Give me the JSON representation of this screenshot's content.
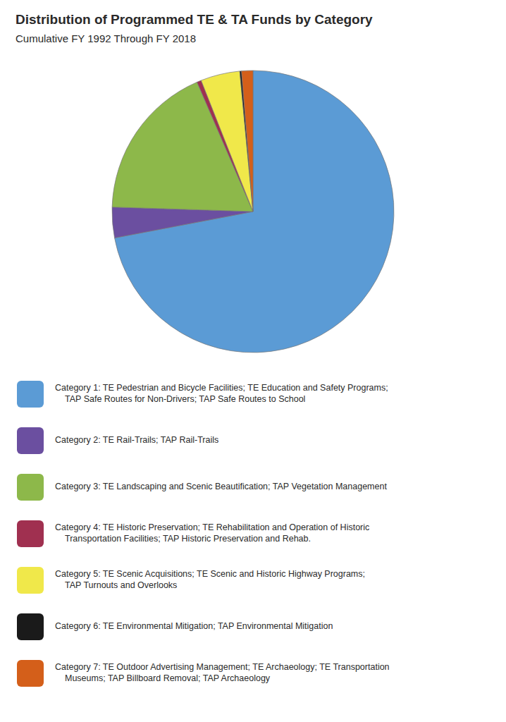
{
  "chart_data": {
    "type": "pie",
    "title": "Distribution of Programmed TE & TA Funds by Category",
    "subtitle": "Cumulative FY 1992 Through FY 2018",
    "categories": [
      "Category 1: TE Pedestrian and Bicycle Facilities; TE Education and Safety Programs;\nTAP Safe Routes for Non-Drivers; TAP Safe Routes to School",
      "Category 2: TE Rail-Trails; TAP Rail-Trails",
      "Category 3: TE Landscaping and Scenic Beautification; TAP Vegetation Management",
      "Category 4: TE Historic Preservation; TE Rehabilitation and Operation of Historic\nTransportation Facilities; TAP Historic Preservation and Rehab.",
      "Category 5: TE Scenic Acquisitions; TE Scenic and Historic Highway Programs;\nTAP Turnouts and Overlooks",
      "Category 6: TE Environmental Mitigation; TAP Environmental Mitigation",
      "Category 7: TE Outdoor Advertising Management; TE Archaeology; TE Transportation\nMuseums; TAP Billboard Removal; TAP Archaeology"
    ],
    "values": [
      72.0,
      3.5,
      18.0,
      0.5,
      4.5,
      0.2,
      1.3
    ],
    "colors": [
      "#5b9bd5",
      "#6b4fa0",
      "#8db84a",
      "#a03050",
      "#f0e84a",
      "#1a1a1a",
      "#d45f1a"
    ],
    "legend": "bottom"
  }
}
